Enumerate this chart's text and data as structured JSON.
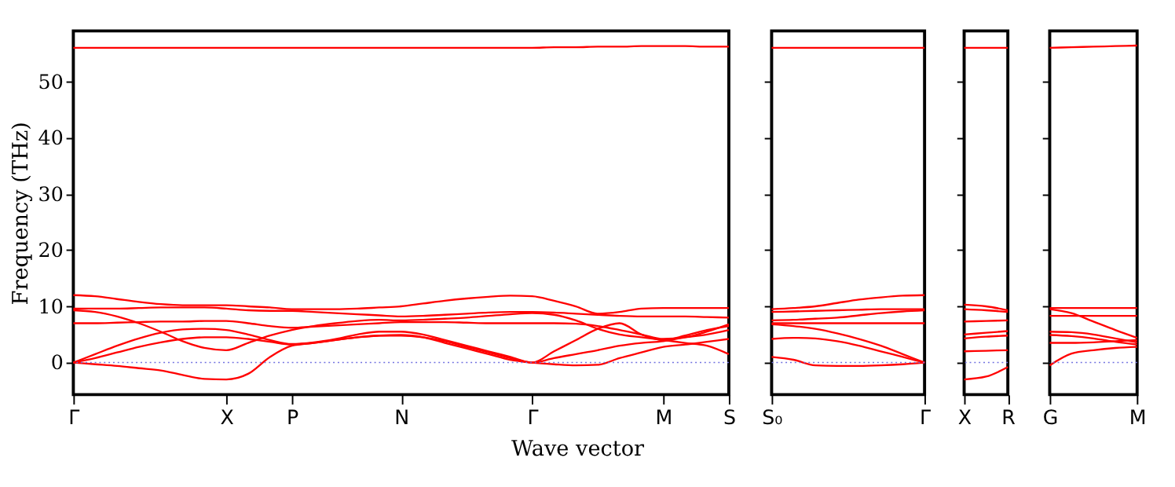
{
  "chart_data": [
    {
      "type": "line",
      "ylabel": "Frequency (THz)",
      "xlabel": "Wave vector",
      "ylim": [
        -5.7,
        59
      ],
      "yticks": [
        0,
        10,
        20,
        30,
        40,
        50
      ],
      "categories": [
        "Γ",
        null,
        null,
        null,
        null,
        null,
        null,
        "X",
        null,
        null,
        "P",
        null,
        null,
        null,
        null,
        "N",
        null,
        null,
        null,
        null,
        null,
        "Γ",
        null,
        null,
        null,
        null,
        null,
        "M",
        null,
        null,
        "S"
      ],
      "grid": false,
      "marker": "none",
      "line_style": "solid",
      "legend": false,
      "ref_lines": [
        {
          "axis": "y",
          "value": 0,
          "color": "#6f6fe0",
          "line_style": "dotted"
        }
      ],
      "series": [
        {
          "color": "#ff0000",
          "values": [
            56.0,
            56.0,
            56.0,
            56.0,
            56.0,
            56.0,
            56.0,
            56.0,
            56.0,
            56.0,
            56.0,
            56.0,
            56.0,
            56.0,
            56.0,
            56.0,
            56.0,
            56.0,
            56.0,
            56.0,
            56.0,
            56.0,
            56.1,
            56.1,
            56.2,
            56.2,
            56.3,
            56.3,
            56.3,
            56.2,
            56.2
          ]
        },
        {
          "color": "#ff0000",
          "values": [
            12.0,
            11.8,
            11.3,
            10.8,
            10.4,
            10.2,
            10.2,
            10.2,
            10.0,
            9.8,
            9.5,
            9.5,
            9.5,
            9.6,
            9.8,
            10.0,
            10.5,
            11.0,
            11.4,
            11.7,
            11.9,
            11.8,
            11.0,
            10.0,
            8.7,
            9.0,
            9.6,
            9.7,
            9.7,
            9.7,
            9.7
          ]
        },
        {
          "color": "#ff0000",
          "values": [
            9.6,
            9.6,
            9.6,
            9.7,
            9.8,
            9.8,
            9.8,
            9.6,
            9.3,
            9.2,
            9.2,
            9.0,
            8.8,
            8.6,
            8.4,
            8.2,
            8.3,
            8.5,
            8.7,
            8.9,
            9.0,
            9.0,
            8.9,
            8.7,
            8.5,
            8.3,
            8.2,
            8.2,
            8.2,
            8.1,
            8.0
          ]
        },
        {
          "color": "#ff0000",
          "values": [
            9.3,
            9.0,
            8.2,
            7.0,
            5.5,
            3.8,
            2.6,
            2.2,
            3.5,
            4.8,
            5.8,
            6.5,
            7.0,
            7.4,
            7.6,
            7.5,
            7.6,
            7.8,
            8.0,
            8.3,
            8.6,
            8.8,
            8.5,
            7.5,
            6.0,
            5.0,
            4.5,
            4.0,
            3.5,
            3.0,
            1.5
          ]
        },
        {
          "color": "#ff0000",
          "values": [
            7.0,
            7.0,
            7.1,
            7.2,
            7.3,
            7.3,
            7.4,
            7.4,
            7.0,
            6.5,
            6.2,
            6.4,
            6.6,
            6.8,
            7.0,
            7.2,
            7.2,
            7.2,
            7.1,
            7.0,
            7.0,
            7.0,
            7.0,
            6.9,
            6.5,
            5.8,
            5.0,
            4.2,
            4.5,
            5.5,
            6.8
          ]
        },
        {
          "color": "#ff0000",
          "values": [
            0,
            1.5,
            3.0,
            4.3,
            5.3,
            5.9,
            6.0,
            5.8,
            5.0,
            4.0,
            3.3,
            3.6,
            4.2,
            5.0,
            5.5,
            5.5,
            5.0,
            4.0,
            3.0,
            2.0,
            1.0,
            0,
            2.0,
            4.0,
            6.0,
            7.0,
            5.0,
            4.0,
            4.8,
            5.8,
            6.5
          ]
        },
        {
          "color": "#ff0000",
          "values": [
            0,
            0.8,
            1.8,
            2.8,
            3.6,
            4.2,
            4.5,
            4.5,
            4.2,
            3.7,
            3.2,
            3.5,
            4.0,
            4.5,
            4.8,
            4.8,
            4.5,
            3.8,
            2.8,
            1.8,
            0.8,
            0,
            0.8,
            1.5,
            2.2,
            3.0,
            3.5,
            3.8,
            4.5,
            5.0,
            5.8
          ]
        },
        {
          "color": "#ff0000",
          "values": [
            0,
            -0.3,
            -0.6,
            -1.0,
            -1.4,
            -2.2,
            -2.9,
            -3.0,
            -2.0,
            1.0,
            3.0,
            3.5,
            4.0,
            4.5,
            4.8,
            4.9,
            4.5,
            3.5,
            2.5,
            1.5,
            0.5,
            0,
            -0.3,
            -0.5,
            -0.4,
            0.8,
            1.8,
            2.8,
            3.2,
            3.7,
            4.2
          ]
        }
      ]
    },
    {
      "type": "line",
      "ylim": [
        -5.7,
        59
      ],
      "yticks": [
        {
          "value": 0,
          "label": null
        },
        {
          "value": 10,
          "label": null
        },
        {
          "value": 20,
          "label": null
        },
        {
          "value": 30,
          "label": null
        },
        {
          "value": 40,
          "label": null
        },
        {
          "value": 50,
          "label": null
        }
      ],
      "categories": [
        "S₀",
        null,
        null,
        null,
        null,
        null,
        null,
        "Γ"
      ],
      "tick_labels": "x",
      "grid": false,
      "marker": "none",
      "line_style": "solid",
      "legend": false,
      "ref_lines": [
        {
          "axis": "y",
          "value": 0,
          "color": "#6f6fe0",
          "line_style": "dotted"
        }
      ],
      "series": [
        {
          "color": "#ff0000",
          "values": [
            56,
            56,
            56,
            56,
            56,
            56,
            56,
            56
          ]
        },
        {
          "color": "#ff0000",
          "values": [
            9.5,
            9.7,
            10.0,
            10.6,
            11.2,
            11.6,
            11.9,
            12.0
          ]
        },
        {
          "color": "#ff0000",
          "values": [
            9.0,
            9.1,
            9.2,
            9.3,
            9.4,
            9.5,
            9.5,
            9.5
          ]
        },
        {
          "color": "#ff0000",
          "values": [
            7.5,
            7.6,
            7.8,
            8.0,
            8.4,
            8.8,
            9.1,
            9.3
          ]
        },
        {
          "color": "#ff0000",
          "values": [
            7.0,
            7.0,
            7.0,
            7.0,
            7.0,
            7.0,
            7.0,
            7.0
          ]
        },
        {
          "color": "#ff0000",
          "values": [
            6.8,
            6.5,
            6.0,
            5.2,
            4.2,
            3.0,
            1.5,
            0
          ]
        },
        {
          "color": "#ff0000",
          "values": [
            4.2,
            4.4,
            4.3,
            3.8,
            3.0,
            2.0,
            1.0,
            0
          ]
        },
        {
          "color": "#ff0000",
          "values": [
            1.0,
            0.5,
            -0.5,
            -0.6,
            -0.6,
            -0.5,
            -0.3,
            0
          ]
        }
      ]
    },
    {
      "type": "line",
      "ylim": [
        -5.7,
        59
      ],
      "yticks": [
        {
          "value": 0,
          "label": null
        },
        {
          "value": 10,
          "label": null
        },
        {
          "value": 20,
          "label": null
        },
        {
          "value": 30,
          "label": null
        },
        {
          "value": 40,
          "label": null
        },
        {
          "value": 50,
          "label": null
        }
      ],
      "categories": [
        "X",
        null,
        "R"
      ],
      "tick_labels": "x",
      "grid": false,
      "marker": "none",
      "line_style": "solid",
      "legend": false,
      "ref_lines": [
        {
          "axis": "y",
          "value": 0,
          "color": "#6f6fe0",
          "line_style": "dotted"
        }
      ],
      "series": [
        {
          "color": "#ff0000",
          "values": [
            56,
            56,
            56
          ]
        },
        {
          "color": "#ff0000",
          "values": [
            10.3,
            10.0,
            9.3
          ]
        },
        {
          "color": "#ff0000",
          "values": [
            9.5,
            9.3,
            9.0
          ]
        },
        {
          "color": "#ff0000",
          "values": [
            7.3,
            7.4,
            7.5
          ]
        },
        {
          "color": "#ff0000",
          "values": [
            5.0,
            5.3,
            5.6
          ]
        },
        {
          "color": "#ff0000",
          "values": [
            4.3,
            4.6,
            4.8
          ]
        },
        {
          "color": "#ff0000",
          "values": [
            2.0,
            2.1,
            2.2
          ]
        },
        {
          "color": "#ff0000",
          "values": [
            -3,
            -2.5,
            -0.8
          ]
        }
      ]
    },
    {
      "type": "line",
      "ylim": [
        -5.7,
        59
      ],
      "yticks": [
        {
          "value": 0,
          "label": null
        },
        {
          "value": 10,
          "label": null
        },
        {
          "value": 20,
          "label": null
        },
        {
          "value": 30,
          "label": null
        },
        {
          "value": 40,
          "label": null
        },
        {
          "value": 50,
          "label": null
        }
      ],
      "categories": [
        "G",
        null,
        null,
        null,
        "M"
      ],
      "tick_labels": "x",
      "grid": false,
      "marker": "none",
      "line_style": "solid",
      "legend": false,
      "ref_lines": [
        {
          "axis": "y",
          "value": 0,
          "color": "#6f6fe0",
          "line_style": "dotted"
        }
      ],
      "series": [
        {
          "color": "#ff0000",
          "values": [
            56.0,
            56.1,
            56.2,
            56.3,
            56.4
          ]
        },
        {
          "color": "#ff0000",
          "values": [
            9.7,
            9.7,
            9.7,
            9.7,
            9.7
          ]
        },
        {
          "color": "#ff0000",
          "values": [
            8.3,
            8.3,
            8.3,
            8.3,
            8.3
          ]
        },
        {
          "color": "#ff0000",
          "values": [
            9.5,
            8.8,
            7.3,
            5.8,
            4.4
          ]
        },
        {
          "color": "#ff0000",
          "values": [
            5.5,
            5.4,
            5.0,
            4.3,
            3.6
          ]
        },
        {
          "color": "#ff0000",
          "values": [
            4.9,
            4.7,
            4.3,
            3.7,
            3.2
          ]
        },
        {
          "color": "#ff0000",
          "values": [
            3.5,
            3.5,
            3.6,
            3.8,
            4.0
          ]
        },
        {
          "color": "#ff0000",
          "values": [
            -0.5,
            1.6,
            2.2,
            2.6,
            2.8
          ]
        }
      ]
    }
  ]
}
